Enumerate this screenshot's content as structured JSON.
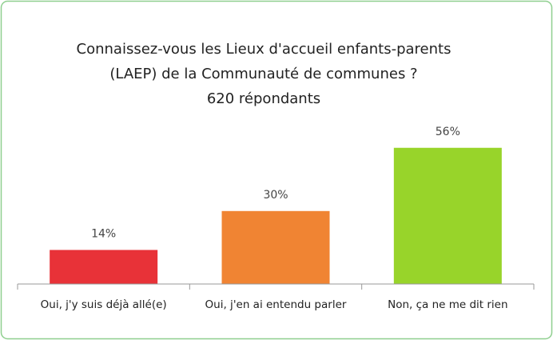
{
  "chart_data": {
    "type": "bar",
    "title": [
      "Connaissez-vous les Lieux d'accueil enfants-parents",
      "(LAEP) de la Communauté de communes ?"
    ],
    "subtitle": "620 répondants",
    "categories": [
      "Oui, j'y suis déjà allé(e)",
      "Oui, j'en ai entendu parler",
      "Non, ça ne me dit rien"
    ],
    "values": [
      14,
      30,
      56
    ],
    "value_labels": [
      "14%",
      "30%",
      "56%"
    ],
    "colors": [
      "#e83238",
      "#f08433",
      "#98d42a"
    ]
  }
}
